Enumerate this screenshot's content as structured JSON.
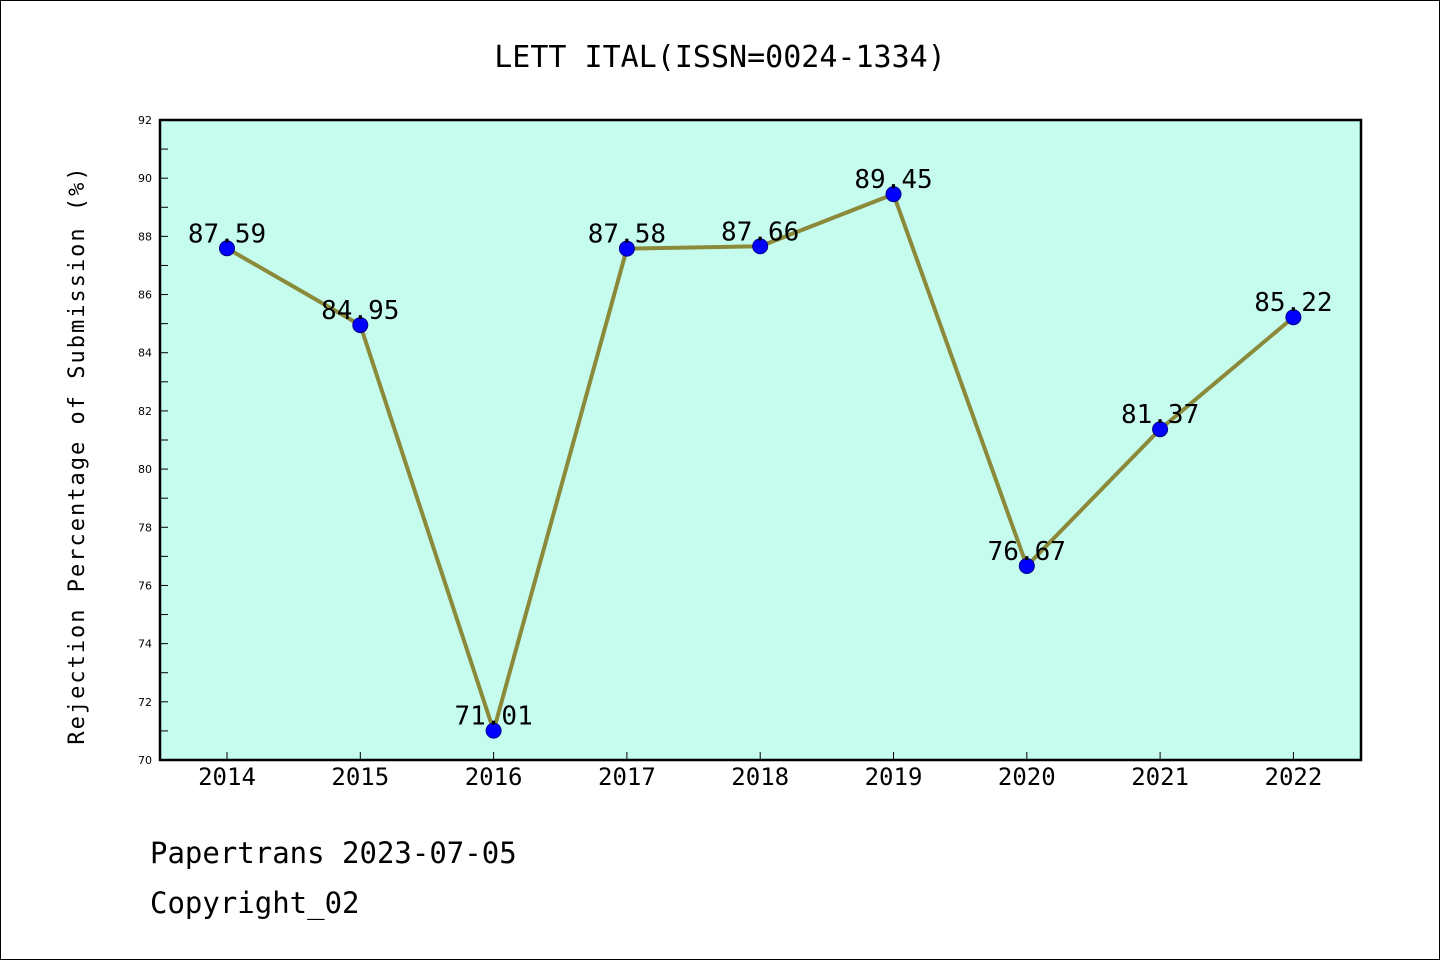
{
  "chart_data": {
    "type": "line",
    "title": "LETT ITAL(ISSN=0024-1334)",
    "ylabel": "Rejection Percentage of Submission (%)",
    "xlabel": "",
    "ylim": [
      70,
      92
    ],
    "yticks": [
      70,
      72,
      74,
      76,
      78,
      80,
      82,
      84,
      86,
      88,
      90,
      92
    ],
    "categories": [
      "2014",
      "2015",
      "2016",
      "2017",
      "2018",
      "2019",
      "2020",
      "2021",
      "2022"
    ],
    "series": [
      {
        "values": [
          87.59,
          84.95,
          71.01,
          87.58,
          87.66,
          89.45,
          76.67,
          81.37,
          85.22
        ],
        "labels": [
          "87.59",
          "84.95",
          "71.01",
          "87.58",
          "87.66",
          "89.45",
          "76.67",
          "81.37",
          "85.22"
        ],
        "line_color": "#8b8a3a",
        "marker_color": "#0000ff"
      }
    ],
    "plot_background": "#c6fcee",
    "grid": false,
    "legend": "none"
  },
  "footer": {
    "line1": "Papertrans 2023-07-05",
    "line2": "Copyright_02"
  }
}
